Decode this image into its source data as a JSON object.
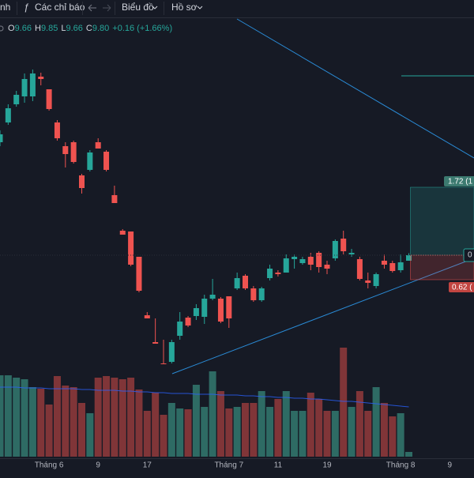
{
  "toolbar": {
    "partial_tab": "nh",
    "indicators": "Các chỉ báo",
    "chart_menu": "Biểu đồ",
    "profile_menu": "Hồ sơ"
  },
  "legend": {
    "o_label": "O",
    "o": "9.66",
    "h_label": "H",
    "h": "9.85",
    "l_label": "L",
    "l": "9.66",
    "c_label": "C",
    "c": "9.80",
    "change": "+0.16 (+1.66%)"
  },
  "chart_data": {
    "type": "candlestick",
    "open": [
      12.66,
      13.16,
      13.62,
      13.82,
      13.82,
      14.32,
      14.0,
      13.16,
      12.56,
      12.66,
      11.82,
      11.96,
      12.66,
      12.42,
      11.32,
      10.42,
      10.4,
      9.76,
      8.28,
      7.6,
      7.06,
      7.1,
      7.76,
      8.22,
      8.26,
      8.24,
      8.7,
      8.7,
      8.76,
      8.96,
      9.28,
      8.96,
      8.66,
      9.22,
      9.36,
      9.36,
      9.7,
      9.6,
      9.76,
      9.86,
      9.56,
      9.72,
      10.22,
      9.82,
      9.7,
      9.16,
      9.02,
      9.66,
      9.6,
      9.42,
      9.66
    ],
    "high": [
      12.96,
      13.62,
      13.96,
      14.4,
      14.5,
      14.42,
      14.0,
      13.22,
      12.66,
      12.7,
      11.86,
      12.46,
      12.76,
      12.46,
      11.56,
      10.46,
      10.4,
      9.76,
      8.36,
      8.2,
      7.66,
      7.66,
      8.36,
      8.26,
      8.56,
      8.8,
      9.2,
      8.74,
      8.76,
      9.36,
      9.32,
      9.02,
      9.0,
      9.56,
      9.42,
      9.82,
      9.82,
      9.76,
      9.86,
      9.9,
      9.66,
      10.2,
      10.42,
      9.96,
      9.76,
      9.36,
      9.36,
      9.82,
      9.66,
      9.82,
      9.85
    ],
    "low": [
      12.56,
      13.1,
      13.56,
      13.66,
      13.7,
      14.1,
      13.46,
      12.7,
      12.02,
      12.12,
      11.36,
      11.92,
      12.5,
      11.92,
      11.12,
      10.32,
      9.52,
      8.86,
      8.2,
      7.56,
      7.04,
      7.06,
      7.66,
      7.98,
      8.16,
      8.06,
      8.66,
      8.08,
      7.96,
      8.92,
      8.92,
      8.62,
      8.62,
      9.16,
      9.26,
      9.36,
      9.46,
      9.56,
      9.42,
      9.36,
      9.32,
      9.66,
      9.82,
      9.76,
      9.16,
      8.96,
      8.96,
      9.46,
      9.36,
      9.36,
      9.66
    ],
    "close": [
      12.86,
      13.52,
      13.86,
      14.26,
      14.4,
      14.26,
      13.5,
      12.76,
      12.36,
      12.16,
      11.5,
      12.4,
      12.5,
      11.96,
      11.12,
      10.32,
      9.56,
      8.9,
      8.2,
      7.56,
      7.04,
      7.6,
      8.12,
      8.02,
      8.46,
      8.7,
      8.8,
      8.12,
      8.2,
      9.22,
      8.96,
      8.66,
      8.96,
      9.46,
      9.32,
      9.72,
      9.76,
      9.7,
      9.56,
      9.5,
      9.46,
      10.16,
      9.9,
      9.86,
      9.2,
      9.1,
      9.32,
      9.56,
      9.4,
      9.62,
      9.8
    ],
    "volume": [
      103,
      103,
      100,
      98,
      88,
      86,
      66,
      102,
      90,
      88,
      68,
      55,
      100,
      102,
      100,
      98,
      100,
      85,
      58,
      81,
      53,
      68,
      61,
      60,
      91,
      63,
      108,
      83,
      61,
      63,
      68,
      68,
      83,
      63,
      73,
      83,
      58,
      58,
      81,
      73,
      58,
      58,
      138,
      63,
      83,
      58,
      88,
      68,
      51,
      55,
      6
    ],
    "volume_ma": [
      88,
      88,
      88,
      87,
      87,
      87,
      86,
      86,
      86,
      86,
      85,
      85,
      84,
      84,
      84,
      83,
      83,
      82,
      82,
      81,
      81,
      80,
      80,
      80,
      79,
      79,
      79,
      78,
      78,
      78,
      77,
      77,
      76,
      76,
      75,
      75,
      74,
      74,
      73,
      73,
      72,
      71,
      70,
      70,
      69,
      68,
      67,
      66,
      65,
      64,
      63
    ],
    "ylim": [
      6.86,
      15.26
    ],
    "vlim": [
      0,
      150
    ],
    "xticks": [
      {
        "value": 6,
        "label": "Tháng 6"
      },
      {
        "value": 12,
        "label": "9"
      },
      {
        "value": 18,
        "label": "17"
      },
      {
        "value": 28,
        "label": "Tháng 7"
      },
      {
        "value": 34,
        "label": "11"
      },
      {
        "value": 40,
        "label": "19"
      },
      {
        "value": 49,
        "label": "Tháng 8"
      },
      {
        "value": 55,
        "label": "9"
      }
    ],
    "up_color": "#26a69a",
    "down_color": "#ef5350",
    "vol_up_color": "#2e6b64",
    "vol_down_color": "#803538",
    "ma_color": "#2962ff",
    "position": {
      "entry": 9.8,
      "target": 11.52,
      "stop": 9.18,
      "target_label": "1.72 (1",
      "stop_label": "0.62 (",
      "entry_label": "0"
    }
  }
}
